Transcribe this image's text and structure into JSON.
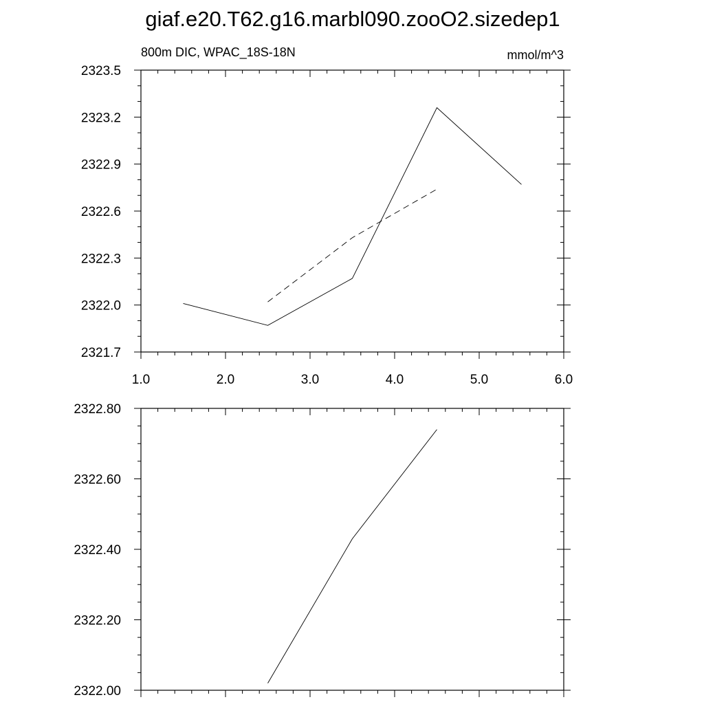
{
  "title": "giaf.e20.T62.g16.marbl090.zooO2.sizedep1",
  "chart_data": [
    {
      "type": "line",
      "left_string": "800m DIC, WPAC_18S-18N",
      "right_string": "mmol/m^3",
      "xlim": [
        1.0,
        6.0
      ],
      "ylim": [
        2321.7,
        2323.5
      ],
      "x_major_ticks": [
        1.0,
        2.0,
        3.0,
        4.0,
        5.0,
        6.0
      ],
      "x_tick_labels": [
        "1.0",
        "2.0",
        "3.0",
        "4.0",
        "5.0",
        "6.0"
      ],
      "x_minor_step": 0.2,
      "y_major_ticks": [
        2321.7,
        2322.0,
        2322.3,
        2322.6,
        2322.9,
        2323.2,
        2323.5
      ],
      "y_tick_labels": [
        "2321.7",
        "2322.0",
        "2322.3",
        "2322.6",
        "2322.9",
        "2323.2",
        "2323.5"
      ],
      "y_minor_step": 0.1,
      "series": [
        {
          "style": "solid",
          "x": [
            1.5,
            2.5,
            3.5,
            4.5,
            5.5
          ],
          "y": [
            2322.01,
            2321.87,
            2322.17,
            2323.26,
            2322.77
          ]
        },
        {
          "style": "dashed",
          "x": [
            2.5,
            3.5,
            4.5
          ],
          "y": [
            2322.02,
            2322.43,
            2322.74
          ]
        }
      ]
    },
    {
      "type": "line",
      "left_string": "",
      "right_string": "",
      "xlim": [
        1.0,
        6.0
      ],
      "ylim": [
        2322.0,
        2322.8
      ],
      "x_major_ticks": [
        1.0,
        2.0,
        3.0,
        4.0,
        5.0,
        6.0
      ],
      "x_tick_labels": [],
      "x_minor_step": 0.2,
      "y_major_ticks": [
        2322.0,
        2322.2,
        2322.4,
        2322.6,
        2322.8
      ],
      "y_tick_labels": [
        "2322.00",
        "2322.20",
        "2322.40",
        "2322.60",
        "2322.80"
      ],
      "y_minor_step": 0.05,
      "series": [
        {
          "style": "solid",
          "x": [
            2.5,
            3.5,
            4.5
          ],
          "y": [
            2322.02,
            2322.43,
            2322.74
          ]
        }
      ]
    }
  ]
}
